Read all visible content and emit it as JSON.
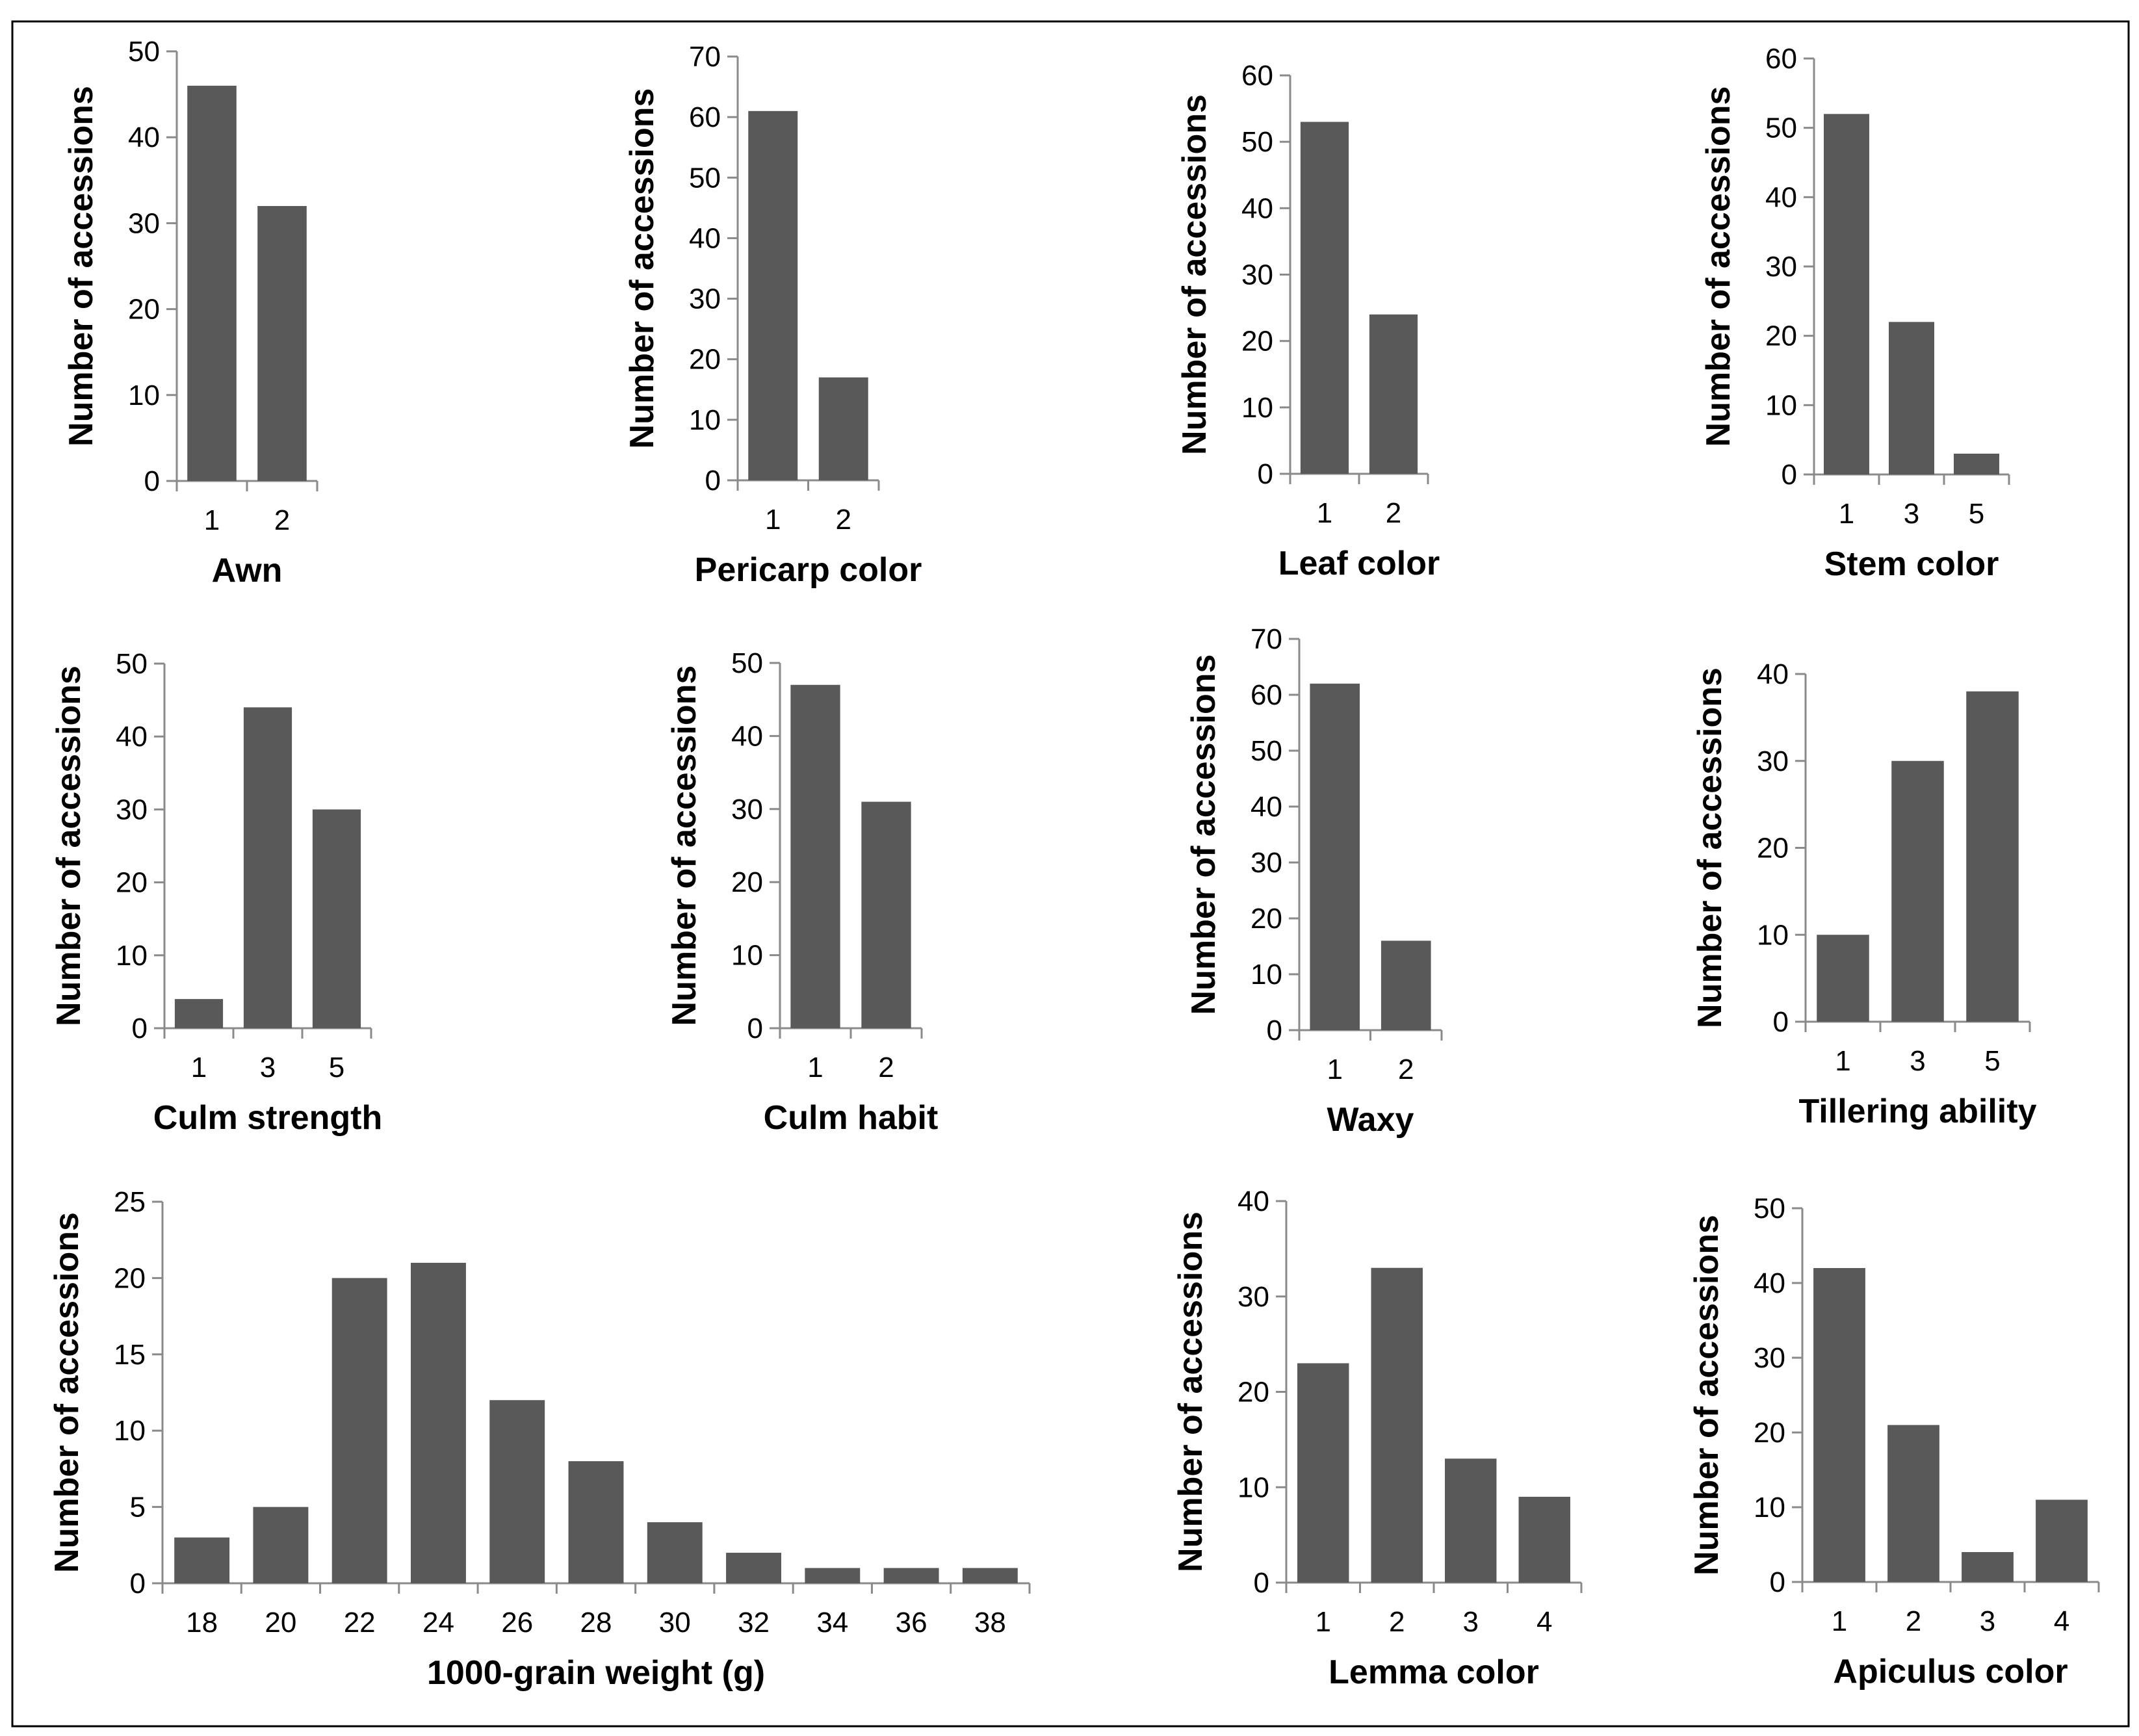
{
  "colors": {
    "bar": "#595959",
    "axis": "#8a8a8a",
    "text": "#000000",
    "frame": "#000000"
  },
  "chart_data": [
    {
      "type": "bar",
      "xlabel": "Awn",
      "ylabel": "Number of accessions",
      "categories": [
        "1",
        "2"
      ],
      "values": [
        46,
        32
      ],
      "ylim": [
        0,
        50
      ],
      "yticks": [
        0,
        10,
        20,
        30,
        40,
        50
      ]
    },
    {
      "type": "bar",
      "xlabel": "Pericarp color",
      "ylabel": "Number of accessions",
      "categories": [
        "1",
        "2"
      ],
      "values": [
        61,
        17
      ],
      "ylim": [
        0,
        70
      ],
      "yticks": [
        0,
        10,
        20,
        30,
        40,
        50,
        60,
        70
      ]
    },
    {
      "type": "bar",
      "xlabel": "Leaf color",
      "ylabel": "Number of accessions",
      "categories": [
        "1",
        "2"
      ],
      "values": [
        53,
        24
      ],
      "ylim": [
        0,
        60
      ],
      "yticks": [
        0,
        10,
        20,
        30,
        40,
        50,
        60
      ]
    },
    {
      "type": "bar",
      "xlabel": "Stem color",
      "ylabel": "Number of accessions",
      "categories": [
        "1",
        "3",
        "5"
      ],
      "values": [
        52,
        22,
        3
      ],
      "ylim": [
        0,
        60
      ],
      "yticks": [
        0,
        10,
        20,
        30,
        40,
        50,
        60
      ]
    },
    {
      "type": "bar",
      "xlabel": "Culm strength",
      "ylabel": "Number of accessions",
      "categories": [
        "1",
        "3",
        "5"
      ],
      "values": [
        4,
        44,
        30
      ],
      "ylim": [
        0,
        50
      ],
      "yticks": [
        0,
        10,
        20,
        30,
        40,
        50
      ]
    },
    {
      "type": "bar",
      "xlabel": "Culm habit",
      "ylabel": "Number of accessions",
      "categories": [
        "1",
        "2"
      ],
      "values": [
        47,
        31
      ],
      "ylim": [
        0,
        50
      ],
      "yticks": [
        0,
        10,
        20,
        30,
        40,
        50
      ]
    },
    {
      "type": "bar",
      "xlabel": "Waxy",
      "ylabel": "Number of accessions",
      "categories": [
        "1",
        "2"
      ],
      "values": [
        62,
        16
      ],
      "ylim": [
        0,
        70
      ],
      "yticks": [
        0,
        10,
        20,
        30,
        40,
        50,
        60,
        70
      ]
    },
    {
      "type": "bar",
      "xlabel": "Tillering ability",
      "ylabel": "Number of accessions",
      "categories": [
        "1",
        "3",
        "5"
      ],
      "values": [
        10,
        30,
        38
      ],
      "ylim": [
        0,
        40
      ],
      "yticks": [
        0,
        10,
        20,
        30,
        40
      ]
    },
    {
      "type": "bar",
      "xlabel": "1000-grain weight (g)",
      "ylabel": "Number of accessions",
      "categories": [
        "18",
        "20",
        "22",
        "24",
        "26",
        "28",
        "30",
        "32",
        "34",
        "36",
        "38"
      ],
      "values": [
        3,
        5,
        20,
        21,
        12,
        8,
        4,
        2,
        1,
        1,
        1
      ],
      "ylim": [
        0,
        25
      ],
      "yticks": [
        0,
        5,
        10,
        15,
        20,
        25
      ]
    },
    {
      "type": "bar",
      "xlabel": "Lemma color",
      "ylabel": "Number of accessions",
      "categories": [
        "1",
        "2",
        "3",
        "4"
      ],
      "values": [
        23,
        33,
        13,
        9
      ],
      "ylim": [
        0,
        40
      ],
      "yticks": [
        0,
        10,
        20,
        30,
        40
      ]
    },
    {
      "type": "bar",
      "xlabel": "Apiculus color",
      "ylabel": "Number of accessions",
      "categories": [
        "1",
        "2",
        "3",
        "4"
      ],
      "values": [
        42,
        21,
        4,
        11
      ],
      "ylim": [
        0,
        50
      ],
      "yticks": [
        0,
        10,
        20,
        30,
        40,
        50
      ]
    }
  ]
}
